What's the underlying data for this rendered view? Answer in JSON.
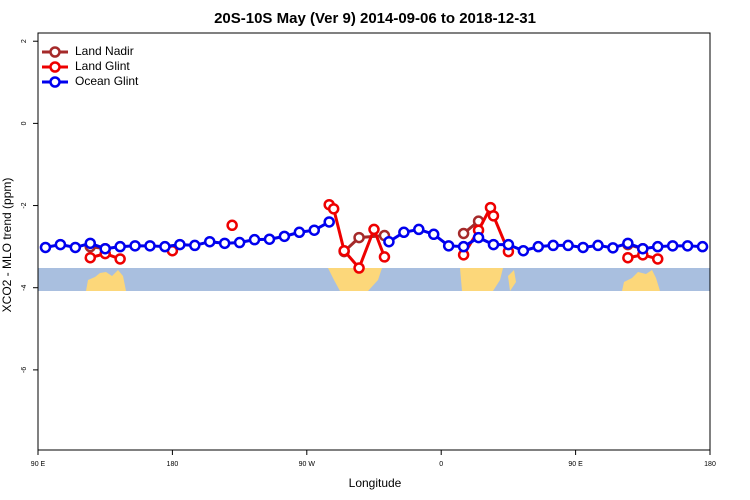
{
  "chart_data": {
    "type": "line",
    "title": "20S-10S May (Ver 9)   2014-09-06 to 2018-12-31",
    "xlabel": "Longitude",
    "ylabel": "XCO2 - MLO trend (ppm)",
    "xlim": [
      90,
      540
    ],
    "ylim": [
      -7.95,
      2.2
    ],
    "xticks": [
      {
        "value": 90,
        "label": "90 E"
      },
      {
        "value": 180,
        "label": "180"
      },
      {
        "value": 270,
        "label": "90 W"
      },
      {
        "value": 360,
        "label": "0"
      },
      {
        "value": 450,
        "label": "90 E"
      },
      {
        "value": 540,
        "label": "180"
      }
    ],
    "yticks": [
      -6,
      -4,
      -2,
      0,
      2
    ],
    "legend": "upper left",
    "series": [
      {
        "name": "Land Nadir",
        "color": "#a52a2a",
        "x": [
          125,
          135,
          200,
          295,
          305,
          322,
          350,
          375,
          385,
          450,
          485,
          495
        ],
        "values": [
          -3.0,
          -3.05,
          null,
          -3.12,
          -2.78,
          -2.73,
          null,
          -2.68,
          -2.38,
          null,
          -2.95,
          -3.05
        ]
      },
      {
        "name": "Land Glint",
        "color": "#ee0000",
        "x": [
          125,
          135,
          145,
          160,
          180,
          200,
          220,
          250,
          285,
          288,
          295,
          305,
          315,
          322,
          350,
          375,
          385,
          393,
          395,
          405,
          450,
          485,
          495,
          505
        ],
        "values": [
          -3.27,
          -3.17,
          -3.3,
          null,
          -3.1,
          null,
          -2.48,
          null,
          -1.98,
          -2.08,
          -3.1,
          -3.52,
          -2.58,
          -3.25,
          null,
          -3.2,
          -2.6,
          -2.05,
          -2.25,
          -3.12,
          null,
          -3.27,
          -3.2,
          -3.3
        ]
      },
      {
        "name": "Ocean Glint",
        "color": "#0000ee",
        "x": [
          95,
          105,
          115,
          125,
          135,
          145,
          155,
          165,
          175,
          185,
          195,
          205,
          215,
          225,
          235,
          245,
          255,
          265,
          275,
          285,
          295,
          305,
          315,
          325,
          335,
          345,
          355,
          365,
          375,
          385,
          395,
          405,
          415,
          425,
          435,
          445,
          455,
          465,
          475,
          485,
          495,
          505,
          515,
          525,
          535
        ],
        "values": [
          -3.02,
          -2.95,
          -3.02,
          -2.92,
          -3.05,
          -3.0,
          -2.98,
          -2.98,
          -3.0,
          -2.95,
          -2.97,
          -2.88,
          -2.92,
          -2.9,
          -2.83,
          -2.82,
          -2.75,
          -2.65,
          -2.6,
          -2.4,
          null,
          null,
          null,
          -2.88,
          -2.65,
          -2.58,
          -2.7,
          -2.98,
          -3.0,
          -2.78,
          -2.95,
          -2.95,
          -3.1,
          -3.0,
          -2.97,
          -2.97,
          -3.02,
          -2.97,
          -3.03,
          -2.92,
          -3.05,
          -3.0,
          -2.98,
          -2.98,
          -3.0
        ]
      }
    ]
  }
}
